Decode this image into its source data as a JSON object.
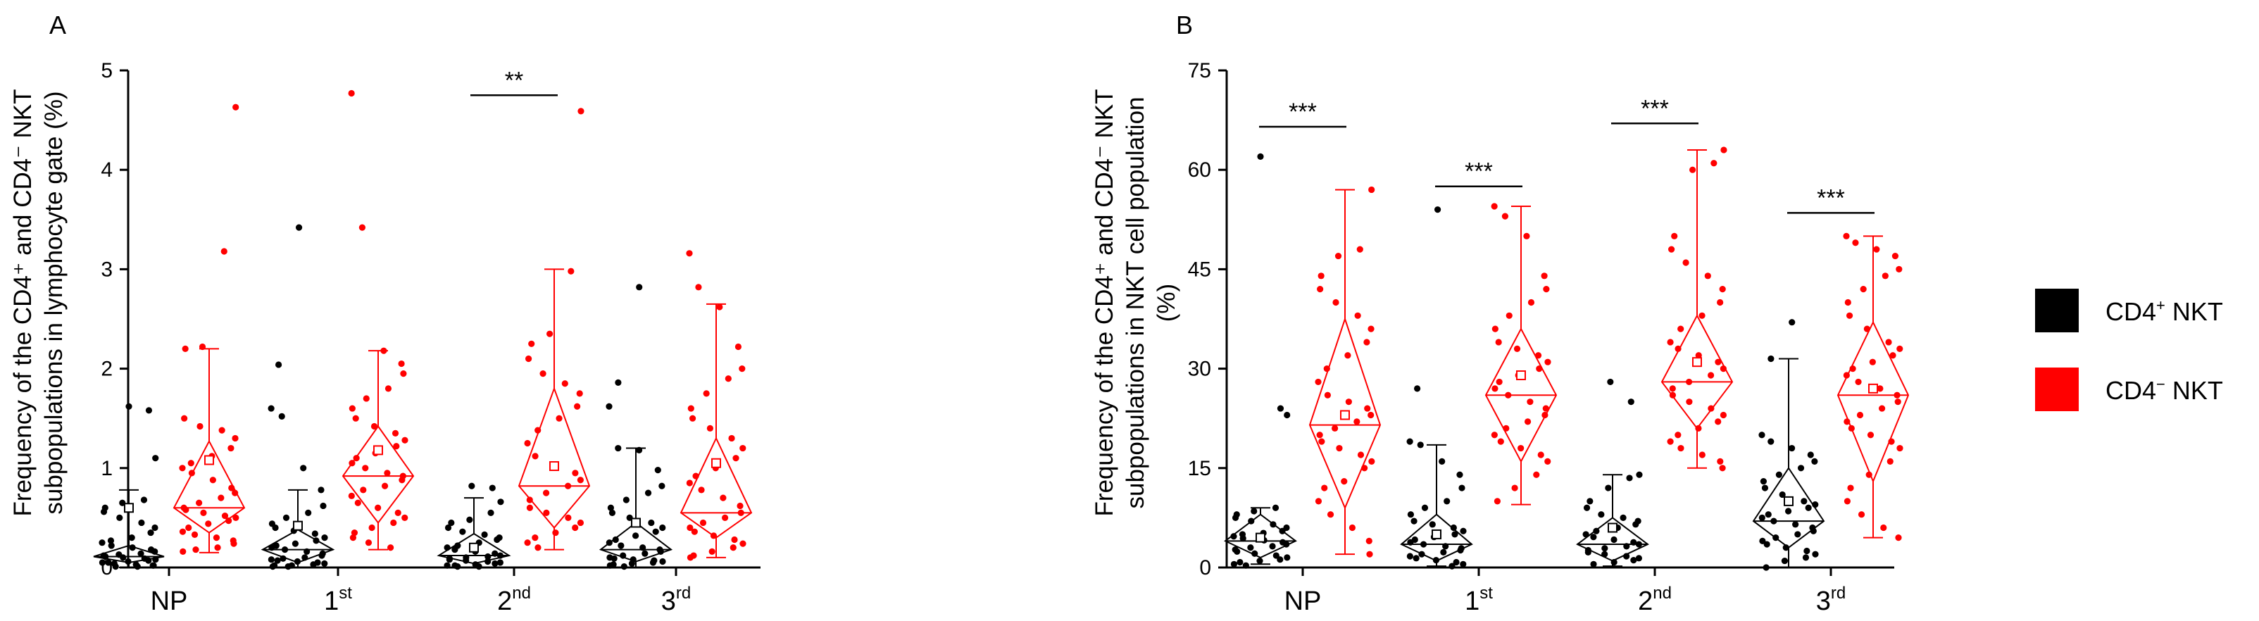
{
  "panel_labels": {
    "a": "A",
    "b": "B"
  },
  "colors": {
    "cd4_pos": "#000000",
    "cd4_neg": "#ff0000",
    "axis": "#000000"
  },
  "legend": {
    "cd4_pos": {
      "base": "CD4",
      "sup": "+",
      "tail": " NKT"
    },
    "cd4_neg": {
      "base": "CD4",
      "sup": "−",
      "tail": " NKT"
    }
  },
  "chart_data": [
    {
      "type": "scatter",
      "title": "",
      "panel": "A",
      "ylabel_line1": "Frequency of the CD4⁺ and CD4⁻ NKT",
      "ylabel_line2": "subpopulations in lymphocyte gate (%)",
      "ylim": [
        0,
        5
      ],
      "yticks": [
        "0",
        "1",
        "2",
        "3",
        "4",
        "5"
      ],
      "categories": [
        {
          "base": "NP",
          "sup": ""
        },
        {
          "base": "1",
          "sup": "st"
        },
        {
          "base": "2",
          "sup": "nd"
        },
        {
          "base": "3",
          "sup": "rd"
        }
      ],
      "series": [
        {
          "name": "CD4+ NKT",
          "groups": [
            {
              "min": 0.0,
              "q1": 0.05,
              "median": 0.11,
              "q3": 0.22,
              "max": 0.78,
              "mean": 0.6,
              "points": [
                1.62,
                1.58,
                1.1,
                0.68,
                0.65,
                0.6,
                0.56,
                0.5,
                0.45,
                0.4,
                0.35,
                0.3,
                0.27,
                0.25,
                0.22,
                0.2,
                0.18,
                0.16,
                0.14,
                0.13,
                0.12,
                0.11,
                0.1,
                0.09,
                0.08,
                0.07,
                0.06,
                0.05,
                0.05,
                0.04,
                0.03,
                0.02,
                0.02,
                0.01,
                0.01
              ]
            },
            {
              "min": 0.0,
              "q1": 0.05,
              "median": 0.18,
              "q3": 0.38,
              "max": 0.78,
              "mean": 0.42,
              "points": [
                3.42,
                2.04,
                1.6,
                1.52,
                1.0,
                0.78,
                0.62,
                0.55,
                0.5,
                0.44,
                0.4,
                0.37,
                0.34,
                0.3,
                0.27,
                0.24,
                0.22,
                0.2,
                0.18,
                0.16,
                0.14,
                0.12,
                0.1,
                0.09,
                0.08,
                0.07,
                0.06,
                0.05,
                0.04,
                0.03,
                0.02,
                0.02,
                0.01,
                0.01
              ]
            },
            {
              "min": 0.0,
              "q1": 0.04,
              "median": 0.12,
              "q3": 0.34,
              "max": 0.7,
              "mean": 0.2,
              "points": [
                0.82,
                0.8,
                0.66,
                0.55,
                0.48,
                0.45,
                0.4,
                0.36,
                0.33,
                0.3,
                0.28,
                0.25,
                0.22,
                0.2,
                0.18,
                0.16,
                0.14,
                0.12,
                0.11,
                0.1,
                0.09,
                0.08,
                0.07,
                0.06,
                0.05,
                0.04,
                0.03,
                0.02,
                0.02,
                0.01,
                0.01
              ]
            },
            {
              "min": 0.0,
              "q1": 0.06,
              "median": 0.18,
              "q3": 0.45,
              "max": 1.2,
              "mean": 0.45,
              "points": [
                2.82,
                1.86,
                1.62,
                1.2,
                1.18,
                0.98,
                0.82,
                0.75,
                0.68,
                0.6,
                0.55,
                0.5,
                0.45,
                0.4,
                0.36,
                0.32,
                0.28,
                0.25,
                0.22,
                0.2,
                0.18,
                0.16,
                0.14,
                0.12,
                0.1,
                0.09,
                0.08,
                0.07,
                0.06,
                0.05,
                0.04,
                0.03,
                0.02,
                0.01
              ]
            }
          ]
        },
        {
          "name": "CD4− NKT",
          "groups": [
            {
              "min": 0.15,
              "q1": 0.35,
              "median": 0.6,
              "q3": 1.27,
              "max": 2.2,
              "mean": 1.08,
              "points": [
                4.63,
                3.18,
                2.22,
                2.2,
                1.5,
                1.42,
                1.38,
                1.3,
                1.2,
                1.12,
                1.05,
                1.0,
                0.95,
                0.88,
                0.8,
                0.75,
                0.7,
                0.65,
                0.6,
                0.58,
                0.55,
                0.52,
                0.5,
                0.47,
                0.44,
                0.4,
                0.36,
                0.33,
                0.3,
                0.27,
                0.24,
                0.2,
                0.18,
                0.16
              ]
            },
            {
              "min": 0.18,
              "q1": 0.45,
              "median": 0.92,
              "q3": 1.42,
              "max": 2.18,
              "mean": 1.18,
              "points": [
                4.77,
                3.42,
                2.18,
                2.05,
                1.95,
                1.8,
                1.7,
                1.6,
                1.5,
                1.42,
                1.35,
                1.28,
                1.22,
                1.15,
                1.1,
                1.05,
                1.0,
                0.95,
                0.92,
                0.88,
                0.82,
                0.78,
                0.72,
                0.65,
                0.6,
                0.55,
                0.5,
                0.45,
                0.4,
                0.35,
                0.3,
                0.25,
                0.2
              ]
            },
            {
              "min": 0.18,
              "q1": 0.4,
              "median": 0.82,
              "q3": 1.8,
              "max": 3.0,
              "mean": 1.02,
              "points": [
                4.59,
                2.98,
                2.35,
                2.25,
                2.1,
                1.95,
                1.85,
                1.75,
                1.62,
                1.5,
                1.38,
                1.25,
                1.12,
                1.02,
                0.95,
                0.88,
                0.82,
                0.75,
                0.68,
                0.6,
                0.55,
                0.5,
                0.45,
                0.4,
                0.35,
                0.3,
                0.25,
                0.2
              ]
            },
            {
              "min": 0.1,
              "q1": 0.3,
              "median": 0.55,
              "q3": 1.3,
              "max": 2.65,
              "mean": 1.05,
              "points": [
                3.16,
                2.82,
                2.62,
                2.22,
                2.0,
                1.9,
                1.75,
                1.6,
                1.5,
                1.4,
                1.3,
                1.2,
                1.1,
                1.0,
                0.92,
                0.85,
                0.78,
                0.7,
                0.62,
                0.55,
                0.5,
                0.45,
                0.4,
                0.36,
                0.32,
                0.28,
                0.24,
                0.2,
                0.16,
                0.12,
                0.1
              ]
            }
          ]
        }
      ],
      "significance": [
        {
          "category_index": 2,
          "label": "**",
          "y": 4.75
        }
      ]
    },
    {
      "type": "scatter",
      "title": "",
      "panel": "B",
      "ylabel_line1": "Frequency of the CD4⁺ and CD4⁻ NKT",
      "ylabel_line2": "subpopulations in NKT cell population",
      "ylabel_line3": "(%)",
      "ylim": [
        0,
        75
      ],
      "yticks": [
        "0",
        "15",
        "30",
        "45",
        "60",
        "75"
      ],
      "categories": [
        {
          "base": "NP",
          "sup": ""
        },
        {
          "base": "1",
          "sup": "st"
        },
        {
          "base": "2",
          "sup": "nd"
        },
        {
          "base": "3",
          "sup": "rd"
        }
      ],
      "series": [
        {
          "name": "CD4+ NKT",
          "groups": [
            {
              "min": 0.5,
              "q1": 1.5,
              "median": 4.0,
              "q3": 8.0,
              "max": 9.0,
              "mean": 4.5,
              "points": [
                62,
                24,
                23,
                9,
                8.5,
                8,
                7.5,
                7,
                6.5,
                6,
                5.5,
                5.2,
                5,
                4.7,
                4.4,
                4.1,
                3.8,
                3.5,
                3.2,
                3,
                2.7,
                2.4,
                2.1,
                1.8,
                1.5,
                1.2,
                1,
                0.8,
                0.5,
                0.3
              ]
            },
            {
              "min": 0.2,
              "q1": 1.0,
              "median": 3.5,
              "q3": 8.0,
              "max": 18.5,
              "mean": 5.0,
              "points": [
                54,
                27,
                19,
                18.5,
                16,
                14,
                12,
                10,
                9,
                8,
                7,
                6.5,
                6,
                5.5,
                5,
                4.6,
                4.2,
                3.8,
                3.5,
                3.2,
                2.9,
                2.6,
                2.3,
                2,
                1.7,
                1.4,
                1.1,
                0.8,
                0.5,
                0.2
              ]
            },
            {
              "min": 0.2,
              "q1": 1.0,
              "median": 3.5,
              "q3": 7.5,
              "max": 14.0,
              "mean": 6.0,
              "points": [
                28,
                25,
                14,
                13.5,
                12,
                10,
                9,
                8,
                7.5,
                7,
                6.5,
                6,
                5.5,
                5,
                4.6,
                4.2,
                3.8,
                3.5,
                3.2,
                2.9,
                2.6,
                2.3,
                2,
                1.7,
                1.4,
                1.1,
                0.8,
                0.5
              ]
            },
            {
              "min": 0.0,
              "q1": 3.0,
              "median": 7.0,
              "q3": 15.0,
              "max": 31.5,
              "mean": 10.0,
              "points": [
                37,
                31.5,
                20,
                19,
                18,
                17,
                16,
                15,
                14,
                13,
                12,
                11,
                10,
                9.5,
                9,
                8.5,
                8,
                7.5,
                7,
                6.5,
                6,
                5.5,
                5,
                4.5,
                4,
                3.5,
                3,
                2.5,
                2,
                1.5,
                1,
                0
              ]
            }
          ]
        },
        {
          "name": "CD4− NKT",
          "groups": [
            {
              "min": 2.0,
              "q1": 9.0,
              "median": 21.5,
              "q3": 37.5,
              "max": 57.0,
              "mean": 23.0,
              "points": [
                57,
                48,
                47,
                44,
                42,
                40,
                38,
                36,
                34,
                32,
                30,
                28,
                26,
                25,
                24,
                23,
                22,
                21,
                20,
                19,
                18,
                17,
                16,
                15,
                13,
                12,
                10,
                8,
                6,
                4,
                2
              ]
            },
            {
              "min": 9.5,
              "q1": 16.0,
              "median": 26.0,
              "q3": 36.0,
              "max": 54.5,
              "mean": 29.0,
              "points": [
                54.5,
                53,
                50,
                44,
                42,
                40,
                38,
                36,
                34,
                33,
                32,
                31,
                30,
                29,
                28,
                27,
                26,
                25,
                24,
                23,
                22,
                21,
                20,
                19,
                18,
                17,
                16,
                14,
                12,
                10
              ]
            },
            {
              "min": 15.0,
              "q1": 21.0,
              "median": 28.0,
              "q3": 38.0,
              "max": 63.0,
              "mean": 31.0,
              "points": [
                63,
                61,
                60,
                50,
                48,
                46,
                44,
                42,
                40,
                38,
                36,
                34,
                33,
                32,
                31,
                30,
                29,
                28,
                27,
                26,
                25,
                24,
                23,
                22,
                21,
                20,
                19,
                18,
                17,
                16,
                15
              ]
            },
            {
              "min": 4.5,
              "q1": 13.0,
              "median": 26.0,
              "q3": 37.0,
              "max": 50.0,
              "mean": 27.0,
              "points": [
                50,
                49,
                48,
                47,
                45,
                44,
                42,
                40,
                38,
                36,
                34,
                33,
                32,
                31,
                30,
                29,
                28,
                27,
                26,
                25,
                24,
                23,
                22,
                21,
                20,
                19,
                18,
                16,
                14,
                12,
                10,
                8,
                6,
                4.5
              ]
            }
          ]
        }
      ],
      "significance": [
        {
          "category_index": 0,
          "label": "***",
          "y": 66.5
        },
        {
          "category_index": 1,
          "label": "***",
          "y": 57.5
        },
        {
          "category_index": 2,
          "label": "***",
          "y": 67.0
        },
        {
          "category_index": 3,
          "label": "***",
          "y": 53.5
        }
      ]
    }
  ]
}
